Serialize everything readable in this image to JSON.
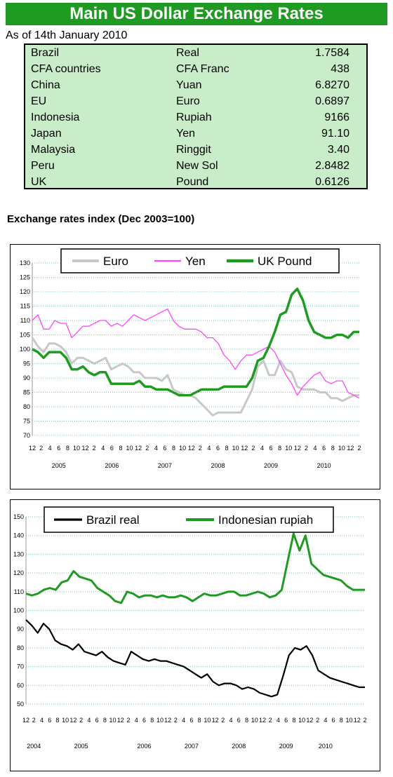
{
  "title": "Main US Dollar Exchange Rates",
  "as_of": "As of 14th January 2010",
  "rates": [
    {
      "country": "Brazil",
      "currency": "Real",
      "rate": "1.7584"
    },
    {
      "country": "CFA countries",
      "currency": "CFA Franc",
      "rate": "438"
    },
    {
      "country": "China",
      "currency": "Yuan",
      "rate": "6.8270"
    },
    {
      "country": "EU",
      "currency": "Euro",
      "rate": "0.6897"
    },
    {
      "country": "Indonesia",
      "currency": "Rupiah",
      "rate": "9166"
    },
    {
      "country": "Japan",
      "currency": "Yen",
      "rate": "91.10"
    },
    {
      "country": "Malaysia",
      "currency": "Ringgit",
      "rate": "3.40"
    },
    {
      "country": "Peru",
      "currency": "New Sol",
      "rate": "2.8482"
    },
    {
      "country": "UK",
      "currency": "Pound",
      "rate": "0.6126"
    }
  ],
  "section_heading": "Exchange rates index (Dec 2003=100)",
  "colors": {
    "green": "#1f9a22",
    "light_green_fill": "#c9ecc9",
    "gray": "#c8c8c8",
    "magenta": "#ff44ff",
    "black": "#000000",
    "grid": "#66cccc"
  },
  "chart_data": [
    {
      "type": "line",
      "ylim": [
        70,
        130
      ],
      "yticks": [
        70,
        75,
        80,
        85,
        90,
        95,
        100,
        105,
        110,
        115,
        120,
        125,
        130
      ],
      "x_tick_labels": [
        "12",
        "2",
        "4",
        "6",
        "8",
        "10",
        "12",
        "2",
        "4",
        "6",
        "8",
        "10",
        "12",
        "2",
        "4",
        "6",
        "8",
        "10",
        "12",
        "2",
        "4",
        "6",
        "8",
        "10",
        "12",
        "2",
        "4",
        "6",
        "8",
        "10",
        "12",
        "2",
        "4",
        "6",
        "8",
        "10",
        "12",
        "2"
      ],
      "year_labels": [
        "2005",
        "2006",
        "2007",
        "2008",
        "2009",
        "2010"
      ],
      "grid": true,
      "legend": "top",
      "series": [
        {
          "name": "Euro",
          "color": "#c8c8c8",
          "values": [
            104,
            101,
            99,
            102,
            102,
            101,
            99,
            95,
            97,
            97,
            96,
            95,
            96,
            97,
            93,
            94,
            95,
            94,
            92,
            92,
            90,
            90,
            90,
            89,
            91,
            86,
            85,
            84,
            84,
            83,
            81,
            79,
            77,
            78,
            78,
            78,
            78,
            78,
            82,
            86,
            94,
            96,
            91,
            91,
            96,
            93,
            92,
            87,
            86,
            86,
            86,
            85,
            85,
            83,
            83,
            82,
            83,
            84,
            84
          ]
        },
        {
          "name": "Yen",
          "color": "#ff44ff",
          "values": [
            110,
            112,
            107,
            107,
            110,
            109,
            109,
            104,
            106,
            108,
            108,
            109,
            110,
            110,
            108,
            109,
            108,
            110,
            112,
            111,
            110,
            111,
            112,
            113,
            114,
            110,
            108,
            107,
            107,
            107,
            106,
            104,
            104,
            102,
            98,
            96,
            93,
            96,
            98,
            98,
            99,
            100,
            101,
            99,
            95,
            91,
            88,
            84,
            87,
            89,
            91,
            92,
            89,
            88,
            89,
            89,
            85,
            84,
            83
          ]
        },
        {
          "name": "UK Pound",
          "color": "#1f9a22",
          "values": [
            100,
            99,
            97,
            99,
            99,
            99,
            97,
            93,
            93,
            94,
            92,
            91,
            92,
            92,
            88,
            88,
            88,
            88,
            88,
            89,
            87,
            87,
            86,
            86,
            86,
            85,
            84,
            84,
            84,
            85,
            86,
            86,
            86,
            86,
            87,
            87,
            87,
            87,
            87,
            90,
            96,
            97,
            101,
            106,
            112,
            113,
            119,
            121,
            117,
            110,
            106,
            105,
            104,
            104,
            105,
            105,
            104,
            106,
            106
          ]
        }
      ]
    },
    {
      "type": "line",
      "ylim": [
        50,
        150
      ],
      "yticks": [
        50,
        60,
        70,
        80,
        90,
        100,
        110,
        120,
        130,
        140,
        150
      ],
      "x_tick_labels": [
        "12",
        "2",
        "4",
        "6",
        "8",
        "10",
        "12",
        "2",
        "4",
        "6",
        "8",
        "10",
        "12",
        "2",
        "4",
        "6",
        "8",
        "10",
        "12",
        "2",
        "4",
        "6",
        "8",
        "10",
        "12",
        "2",
        "4",
        "6",
        "8",
        "10",
        "12",
        "2",
        "4",
        "6",
        "8",
        "10",
        "12",
        "2",
        "4",
        "6",
        "8",
        "10",
        "12",
        "2"
      ],
      "year_labels": [
        "2004",
        "2005",
        "2006",
        "2007",
        "2008",
        "2009",
        "2010"
      ],
      "grid": true,
      "legend": "top",
      "series": [
        {
          "name": "Brazil real",
          "color": "#000000",
          "values": [
            95,
            92,
            88,
            93,
            90,
            84,
            82,
            81,
            79,
            82,
            78,
            77,
            76,
            78,
            75,
            73,
            72,
            71,
            78,
            76,
            74,
            73,
            74,
            73,
            73,
            72,
            71,
            70,
            68,
            66,
            64,
            66,
            62,
            60,
            61,
            61,
            60,
            58,
            59,
            58,
            56,
            55,
            54,
            55,
            65,
            76,
            80,
            79,
            81,
            76,
            68,
            66,
            64,
            63,
            62,
            61,
            60,
            59,
            59
          ]
        },
        {
          "name": "Indonesian rupiah",
          "color": "#1f9a22",
          "values": [
            109,
            108,
            109,
            111,
            112,
            111,
            115,
            116,
            121,
            118,
            117,
            116,
            112,
            110,
            108,
            105,
            104,
            110,
            109,
            107,
            108,
            108,
            107,
            108,
            107,
            107,
            108,
            107,
            105,
            107,
            109,
            108,
            108,
            109,
            110,
            110,
            108,
            108,
            109,
            110,
            109,
            107,
            108,
            111,
            126,
            141,
            132,
            140,
            125,
            122,
            119,
            118,
            117,
            116,
            113,
            111,
            111,
            111
          ]
        }
      ]
    }
  ]
}
